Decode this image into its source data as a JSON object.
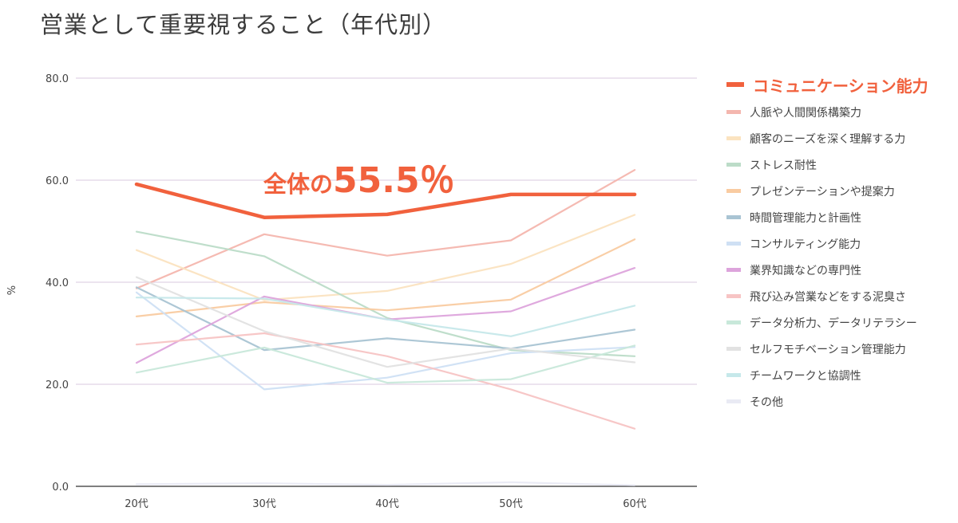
{
  "title": "営業として重要視すること（年代別）",
  "annotation": {
    "prefix": "全体の",
    "value": "55.5％"
  },
  "chart_data": {
    "type": "line",
    "title": "営業として重要視すること（年代別）",
    "xlabel": "",
    "ylabel": "%",
    "ylim": [
      0,
      80
    ],
    "yticks": [
      "0.0",
      "20.0",
      "40.0",
      "60.0",
      "80.0"
    ],
    "categories": [
      "20代",
      "30代",
      "40代",
      "50代",
      "60代"
    ],
    "grid": true,
    "legend_position": "right",
    "series": [
      {
        "name": "コミュニケーション能力",
        "color": "#f1613d",
        "highlight": true,
        "values": [
          59.2,
          52.7,
          53.3,
          57.2,
          57.2
        ]
      },
      {
        "name": "人脈や人間関係構築力",
        "color": "#f4b6ae",
        "values": [
          38.8,
          49.4,
          45.2,
          48.2,
          62.0
        ]
      },
      {
        "name": "顧客のニーズを深く理解する力",
        "color": "#fbe3c0",
        "values": [
          46.3,
          36.5,
          38.3,
          43.6,
          53.2
        ]
      },
      {
        "name": "ストレス耐性",
        "color": "#bcdcc8",
        "values": [
          49.9,
          45.1,
          33.0,
          26.7,
          25.5
        ]
      },
      {
        "name": "プレゼンテーションや提案力",
        "color": "#f9cba1",
        "values": [
          33.3,
          36.1,
          34.5,
          36.6,
          48.4
        ]
      },
      {
        "name": "時間管理能力と計画性",
        "color": "#a9c4d3",
        "values": [
          39.0,
          26.7,
          29.0,
          27.0,
          30.7
        ]
      },
      {
        "name": "コンサルティング能力",
        "color": "#cfe0f4",
        "values": [
          38.0,
          19.0,
          21.3,
          26.1,
          27.3
        ]
      },
      {
        "name": "業界知識などの専門性",
        "color": "#dda4dc",
        "values": [
          24.2,
          37.2,
          32.7,
          34.3,
          42.8
        ]
      },
      {
        "name": "飛び込み営業などをする泥臭さ",
        "color": "#f7c4c4",
        "values": [
          27.8,
          30.0,
          25.5,
          19.0,
          11.3
        ]
      },
      {
        "name": "データ分析力、データリテラシー",
        "color": "#c8e8da",
        "values": [
          22.3,
          27.2,
          20.3,
          21.0,
          27.6
        ]
      },
      {
        "name": "セルフモチベーション管理能力",
        "color": "#e2e2e2",
        "values": [
          41.0,
          30.4,
          23.4,
          27.0,
          24.3
        ]
      },
      {
        "name": "チームワークと協調性",
        "color": "#c6e8ea",
        "values": [
          37.0,
          36.8,
          32.7,
          29.4,
          35.4
        ]
      },
      {
        "name": "その他",
        "color": "#e9eaf4",
        "values": [
          0.4,
          0.6,
          0.3,
          0.8,
          0.2
        ]
      }
    ]
  }
}
